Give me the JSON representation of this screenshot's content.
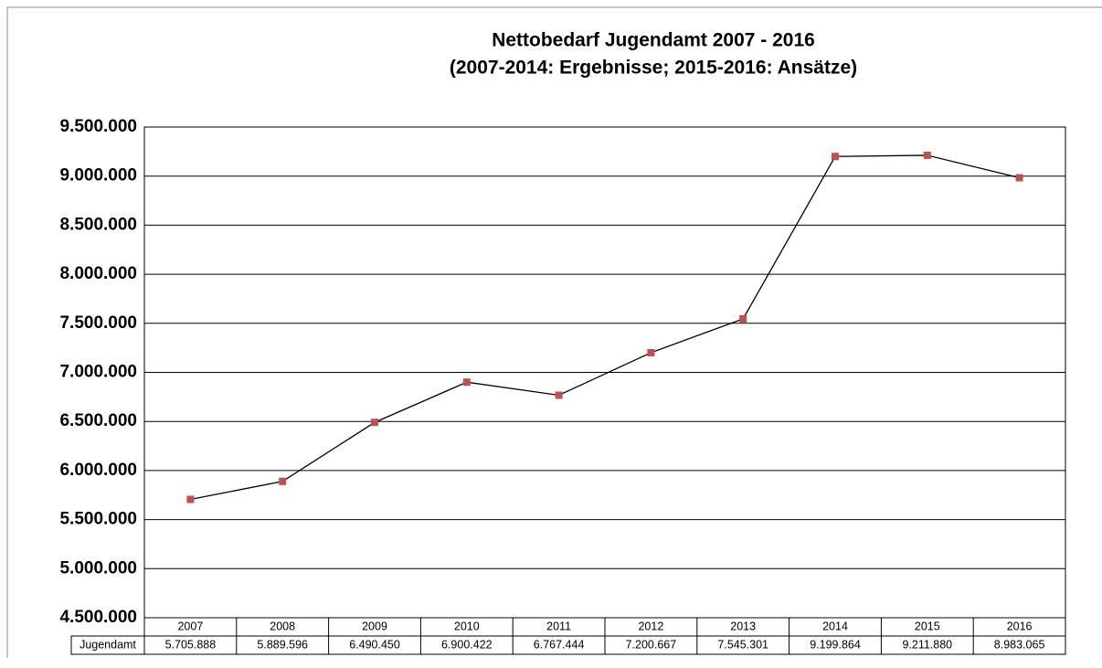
{
  "chart_data": {
    "type": "line",
    "title": "Nettobedarf Jugendamt 2007 - 2016",
    "subtitle": "(2007-2014: Ergebnisse; 2015-2016: Ansätze)",
    "categories": [
      "2007",
      "2008",
      "2009",
      "2010",
      "2011",
      "2012",
      "2013",
      "2014",
      "2015",
      "2016"
    ],
    "series": [
      {
        "name": "Jugendamt",
        "color": "#c0504d",
        "line_color": "#000000",
        "values": [
          5705888,
          5889596,
          6490450,
          6900422,
          6767444,
          7200667,
          7545301,
          9199864,
          9211880,
          8983065
        ],
        "value_labels": [
          "5.705.888",
          "5.889.596",
          "6.490.450",
          "6.900.422",
          "6.767.444",
          "7.200.667",
          "7.545.301",
          "9.199.864",
          "9.211.880",
          "8.983.065"
        ]
      }
    ],
    "ylim": [
      4500000,
      9500000
    ],
    "yticks": [
      {
        "value": 4500000,
        "label": "4.500.000"
      },
      {
        "value": 5000000,
        "label": "5.000.000"
      },
      {
        "value": 5500000,
        "label": "5.500.000"
      },
      {
        "value": 6000000,
        "label": "6.000.000"
      },
      {
        "value": 6500000,
        "label": "6.500.000"
      },
      {
        "value": 7000000,
        "label": "7.000.000"
      },
      {
        "value": 7500000,
        "label": "7.500.000"
      },
      {
        "value": 8000000,
        "label": "8.000.000"
      },
      {
        "value": 8500000,
        "label": "8.500.000"
      },
      {
        "value": 9000000,
        "label": "9.000.000"
      },
      {
        "value": 9500000,
        "label": "9.500.000"
      }
    ],
    "grid": true,
    "data_table": true
  }
}
